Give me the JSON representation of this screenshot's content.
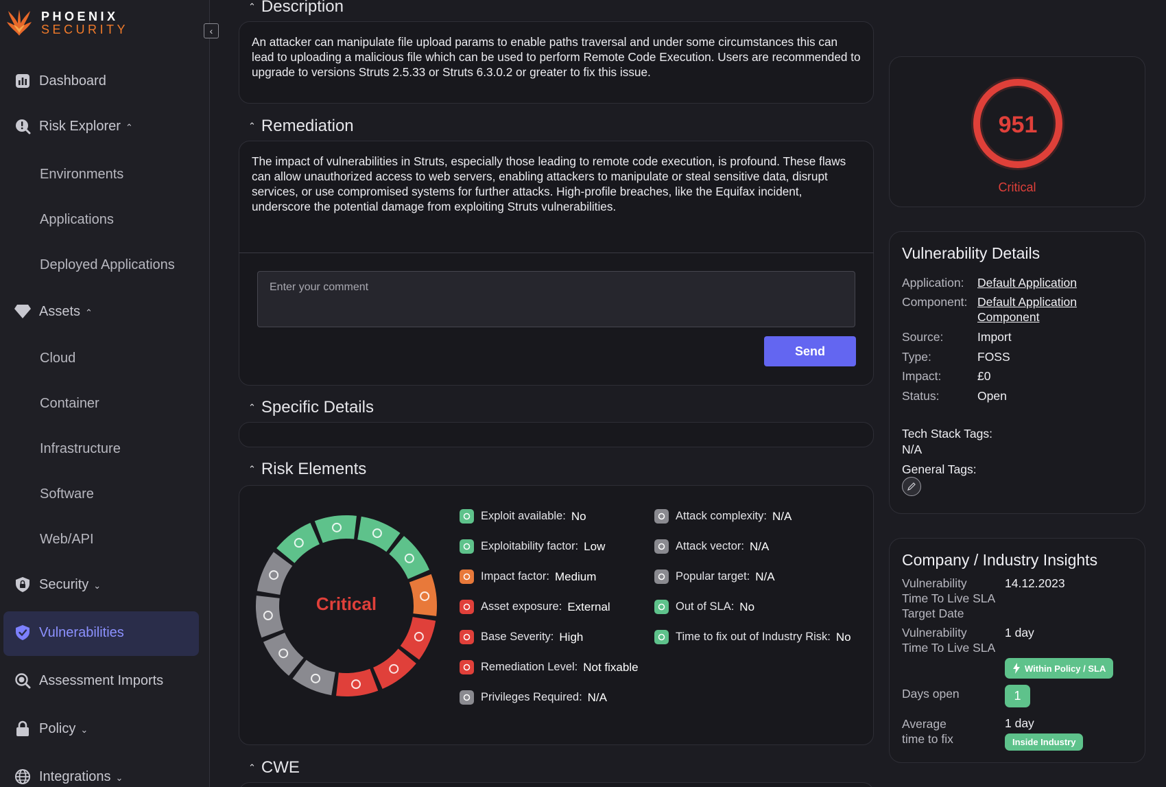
{
  "brand": {
    "line1": "PHOENIX",
    "line2": "SECURITY"
  },
  "sidebar": {
    "items": [
      {
        "label": "Dashboard",
        "icon": "dashboard-icon"
      },
      {
        "label": "Risk Explorer",
        "icon": "risk-explorer-icon"
      },
      {
        "label": "Environments"
      },
      {
        "label": "Applications"
      },
      {
        "label": "Deployed Applications"
      },
      {
        "label": "Assets",
        "icon": "diamond-icon"
      },
      {
        "label": "Cloud"
      },
      {
        "label": "Container"
      },
      {
        "label": "Infrastructure"
      },
      {
        "label": "Software"
      },
      {
        "label": "Web/API"
      },
      {
        "label": "Security",
        "icon": "shield-lock-icon"
      },
      {
        "label": "Vulnerabilities",
        "icon": "shield-check-icon",
        "active": true
      },
      {
        "label": "Assessment Imports",
        "icon": "search-icon"
      },
      {
        "label": "Policy",
        "icon": "lock-icon"
      },
      {
        "label": "Integrations",
        "icon": "globe-icon"
      }
    ]
  },
  "sections": {
    "description": {
      "title": "Description",
      "text": "An attacker can manipulate file upload params to enable paths traversal and under some circumstances this can lead to uploading a malicious file which can be used to perform Remote Code Execution. Users are recommended to upgrade to versions Struts 2.5.33 or Struts 6.3.0.2 or greater to fix this issue."
    },
    "remediation": {
      "title": "Remediation",
      "text": "The impact of vulnerabilities in Struts, especially those leading to remote code execution, is profound. These flaws can allow unauthorized access to web servers, enabling attackers to manipulate or steal sensitive data, disrupt services, or use compromised systems for further attacks. High-profile breaches, like the Equifax incident, underscore the potential damage from exploiting Struts vulnerabilities."
    },
    "comment": {
      "placeholder": "Enter your comment",
      "send_label": "Send"
    },
    "specific_details": {
      "title": "Specific Details"
    },
    "risk_elements": {
      "title": "Risk Elements",
      "wheel_label": "Critical",
      "left": [
        {
          "label": "Exploit available:",
          "value": "No",
          "color": "#5ec28b"
        },
        {
          "label": "Exploitability factor:",
          "value": "Low",
          "color": "#5ec28b"
        },
        {
          "label": "Impact factor:",
          "value": "Medium",
          "color": "#e8793a"
        },
        {
          "label": "Asset exposure:",
          "value": "External",
          "color": "#e0403a"
        },
        {
          "label": "Base Severity:",
          "value": "High",
          "color": "#e0403a"
        },
        {
          "label": "Remediation Level:",
          "value": "Not fixable",
          "color": "#e0403a"
        },
        {
          "label": "Privileges Required:",
          "value": "N/A",
          "color": "#8a8a90"
        }
      ],
      "right": [
        {
          "label": "Attack complexity:",
          "value": "N/A",
          "color": "#8a8a90"
        },
        {
          "label": "Attack vector:",
          "value": "N/A",
          "color": "#8a8a90"
        },
        {
          "label": "Popular target:",
          "value": "N/A",
          "color": "#8a8a90"
        },
        {
          "label": "Out of SLA:",
          "value": "No",
          "color": "#5ec28b"
        },
        {
          "label": "Time to fix out of Industry Risk:",
          "value": "No",
          "color": "#5ec28b"
        }
      ]
    },
    "cwe": {
      "title": "CWE"
    }
  },
  "score": {
    "value": "951",
    "label": "Critical",
    "color": "#e0403a"
  },
  "vulnerability_details": {
    "title": "Vulnerability Details",
    "application_label": "Application:",
    "application_value": "Default Application",
    "component_label": "Component:",
    "component_value_1": "Default Application",
    "component_value_2": "Component",
    "source_label": "Source:",
    "source_value": "Import",
    "type_label": "Type:",
    "type_value": "FOSS",
    "impact_label": "Impact:",
    "impact_value": "£0",
    "status_label": "Status:",
    "status_value": "Open",
    "tech_stack_label": "Tech Stack Tags:",
    "tech_stack_value": "N/A",
    "general_tags_label": "General Tags:"
  },
  "insights": {
    "title": "Company / Industry Insights",
    "ttl_target_l1": "Vulnerability",
    "ttl_target_l2": "Time To Live SLA",
    "ttl_target_l3": "Target Date",
    "ttl_target_value": "14.12.2023",
    "ttl_l1": "Vulnerability",
    "ttl_l2": "Time To Live SLA",
    "ttl_value": "1 day",
    "policy_badge": "Within Policy / SLA",
    "days_open_label": "Days open",
    "days_open_value": "1",
    "avg_l1": "Average",
    "avg_l2": "time to fix",
    "avg_value": "1 day",
    "industry_badge": "Inside Industry"
  }
}
